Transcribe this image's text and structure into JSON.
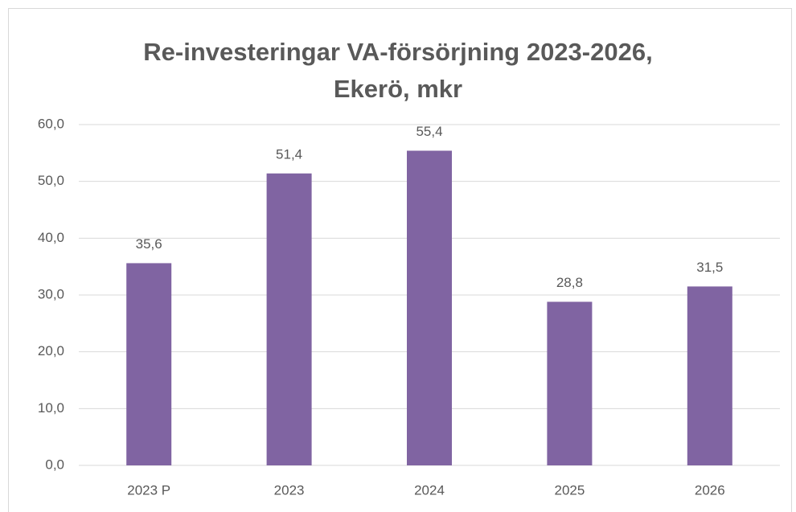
{
  "chart_data": {
    "type": "bar",
    "title": "Re-investeringar VA-försörjning 2023-2026, Ekerö, mkr",
    "categories": [
      "2023 P",
      "2023",
      "2024",
      "2025",
      "2026"
    ],
    "values": [
      35.6,
      51.4,
      55.4,
      28.8,
      31.5
    ],
    "value_labels": [
      "35,6",
      "51,4",
      "55,4",
      "28,8",
      "31,5"
    ],
    "color": "#8064a2",
    "ylim": [
      0,
      60
    ],
    "yticks": [
      {
        "value": 0,
        "label": "0,0"
      },
      {
        "value": 10,
        "label": "10,0"
      },
      {
        "value": 20,
        "label": "20,0"
      },
      {
        "value": 30,
        "label": "30,0"
      },
      {
        "value": 40,
        "label": "40,0"
      },
      {
        "value": 50,
        "label": "50,0"
      },
      {
        "value": 60,
        "label": "60,0"
      }
    ],
    "grid": true
  }
}
